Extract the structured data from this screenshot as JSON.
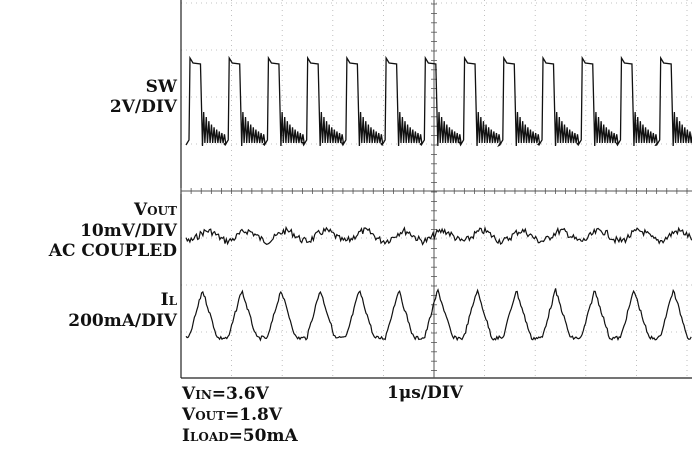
{
  "chart_data": {
    "type": "line",
    "title": "",
    "grid": true,
    "channels": [
      {
        "name": "SW",
        "scale": "2V/DIV",
        "waveform": "switching square wave with ringing"
      },
      {
        "name": "V",
        "name_sub": "OUT",
        "scale": "10mV/DIV",
        "coupling": "AC COUPLED",
        "waveform": "output voltage ripple"
      },
      {
        "name": "I",
        "name_sub": "L",
        "scale": "200mA/DIV",
        "waveform": "triangular inductor current"
      }
    ],
    "timebase": "1μs/DIV",
    "conditions": [
      {
        "sym": "V",
        "sub": "IN",
        "value": "=3.6V"
      },
      {
        "sym": "V",
        "sub": "OUT",
        "value": "=1.8V"
      },
      {
        "sym": "I",
        "sub": "LOAD",
        "value": "=50mA"
      }
    ],
    "pulses": 13
  }
}
